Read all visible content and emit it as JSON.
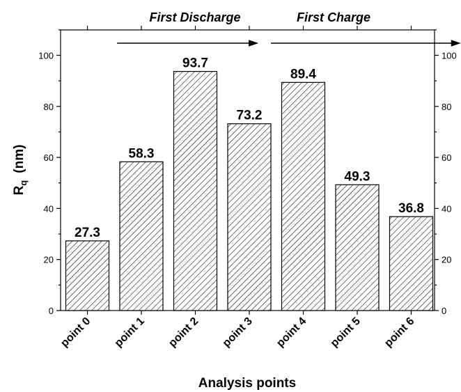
{
  "chart_data": {
    "type": "bar",
    "categories": [
      "point 0",
      "point 1",
      "point 2",
      "point 3",
      "point 4",
      "point 5",
      "point 6"
    ],
    "values": [
      27.3,
      58.3,
      93.7,
      73.2,
      89.4,
      49.3,
      36.8
    ],
    "value_labels": [
      "27.3",
      "58.3",
      "93.7",
      "73.2",
      "89.4",
      "49.3",
      "36.8"
    ],
    "xlabel": "Analysis points",
    "ylabel_main": "R",
    "ylabel_sub": "q",
    "ylabel_unit": "(nm)",
    "ylim": [
      0,
      110
    ],
    "yticks": [
      0,
      20,
      40,
      60,
      80,
      100
    ],
    "ytick_labels": [
      "0",
      "20",
      "40",
      "60",
      "80",
      "100"
    ],
    "minor_yticks": [
      10,
      30,
      50,
      70,
      90,
      110
    ],
    "secondary_yaxis": true,
    "bar_fill": "diagonal hatch",
    "bar_color": "#ffffff",
    "edge_color": "#000000",
    "grid": false,
    "annotations": [
      {
        "text": "First Discharge",
        "arrow_from": 0.55,
        "arrow_to": 3.15
      },
      {
        "text": "First Charge",
        "arrow_from": 3.4,
        "arrow_to": 6.9
      }
    ]
  }
}
